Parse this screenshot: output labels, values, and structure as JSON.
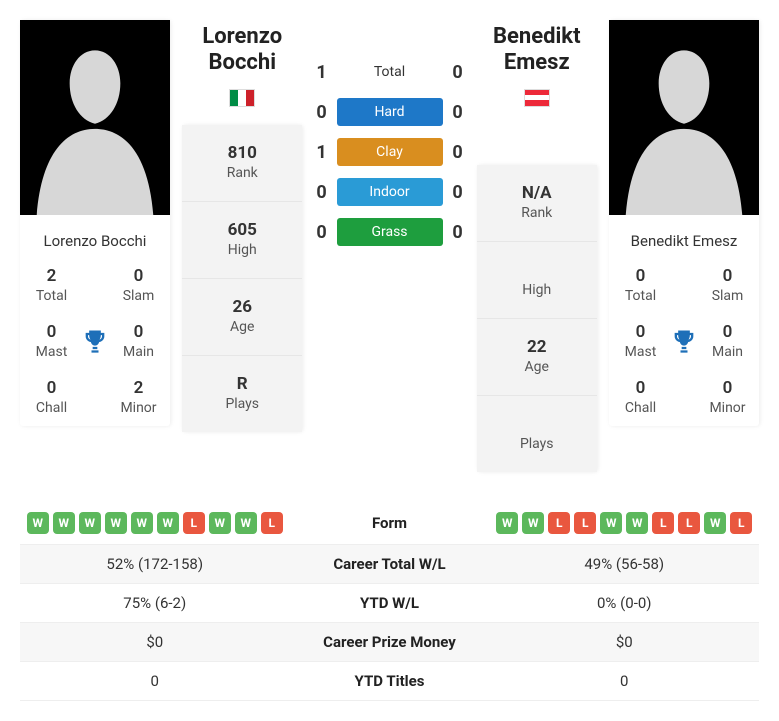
{
  "colors": {
    "hard": "#1e78c8",
    "clay": "#d98e1f",
    "indoor": "#2a9bd6",
    "grass": "#1e9e3e",
    "win": "#5cb85c",
    "loss": "#e9573f",
    "trophy": "#1e6fb8",
    "stat_bg": "#f3f3f3"
  },
  "player1": {
    "name_first": "Lorenzo",
    "name_last": "Bocchi",
    "full_name": "Lorenzo Bocchi",
    "flag_colors": [
      "#008c45",
      "#ffffff",
      "#cd212a"
    ],
    "rank": "810",
    "high": "605",
    "age": "26",
    "plays": "R",
    "titles": {
      "total": "2",
      "slam": "0",
      "mast": "0",
      "main": "0",
      "chall": "0",
      "minor": "2"
    },
    "form": [
      "W",
      "W",
      "W",
      "W",
      "W",
      "W",
      "L",
      "W",
      "W",
      "L"
    ],
    "career_wl": "52% (172-158)",
    "ytd_wl": "75% (6-2)",
    "career_prize": "$0",
    "ytd_titles": "0"
  },
  "player2": {
    "name_first": "Benedikt",
    "name_last": "Emesz",
    "full_name": "Benedikt Emesz",
    "flag_colors": [
      "#ed2939",
      "#ffffff",
      "#ed2939"
    ],
    "rank": "N/A",
    "high": "",
    "age": "22",
    "plays": "",
    "titles": {
      "total": "0",
      "slam": "0",
      "mast": "0",
      "main": "0",
      "chall": "0",
      "minor": "0"
    },
    "form": [
      "W",
      "W",
      "L",
      "L",
      "W",
      "W",
      "L",
      "L",
      "W",
      "L"
    ],
    "career_wl": "49% (56-58)",
    "ytd_wl": "0% (0-0)",
    "career_prize": "$0",
    "ytd_titles": "0"
  },
  "head_to_head": [
    {
      "label": "Total",
      "p1": "1",
      "p2": "0",
      "plain": true
    },
    {
      "label": "Hard",
      "p1": "0",
      "p2": "0",
      "color_key": "hard"
    },
    {
      "label": "Clay",
      "p1": "1",
      "p2": "0",
      "color_key": "clay"
    },
    {
      "label": "Indoor",
      "p1": "0",
      "p2": "0",
      "color_key": "indoor"
    },
    {
      "label": "Grass",
      "p1": "0",
      "p2": "0",
      "color_key": "grass"
    }
  ],
  "labels": {
    "rank": "Rank",
    "high": "High",
    "age": "Age",
    "plays": "Plays",
    "total": "Total",
    "slam": "Slam",
    "mast": "Mast",
    "main": "Main",
    "chall": "Chall",
    "minor": "Minor",
    "form": "Form",
    "career_wl": "Career Total W/L",
    "ytd_wl": "YTD W/L",
    "career_prize": "Career Prize Money",
    "ytd_titles": "YTD Titles"
  }
}
